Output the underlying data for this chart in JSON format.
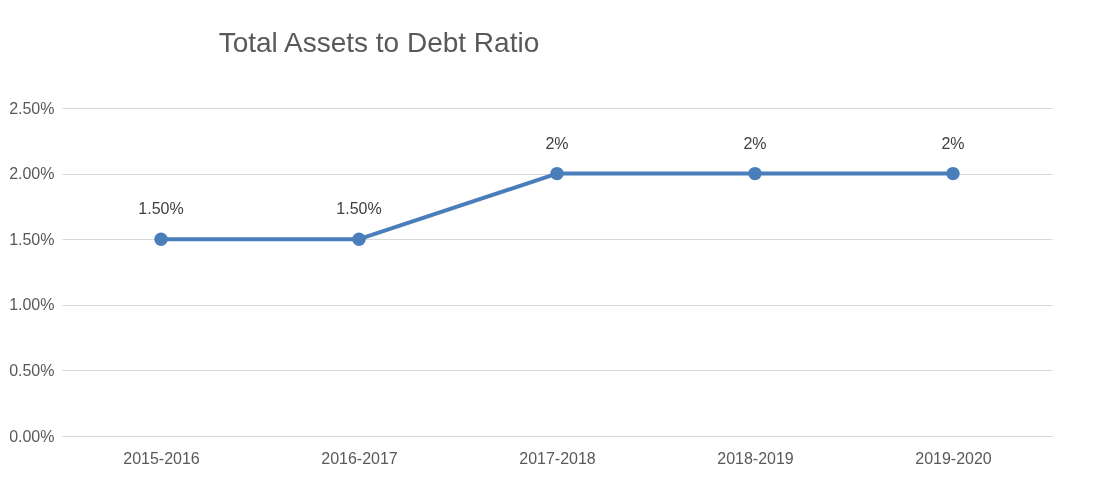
{
  "chart_data": {
    "type": "line",
    "title": "Total Assets to Debt Ratio",
    "categories": [
      "2015-2016",
      "2016-2017",
      "2017-2018",
      "2018-2019",
      "2019-2020"
    ],
    "series": [
      {
        "color": "#4a7ebb",
        "values": [
          1.5,
          1.5,
          2,
          2,
          2
        ],
        "value_labels": [
          "1.50%",
          "1.50%",
          "2%",
          "2%",
          "2%"
        ]
      }
    ],
    "ylim": [
      0,
      2.5
    ],
    "yticks": [
      {
        "value": 0,
        "label": "0.00%"
      },
      {
        "value": 0.5,
        "label": "0.50%"
      },
      {
        "value": 1,
        "label": "1.00%"
      },
      {
        "value": 1.5,
        "label": "1.50%"
      },
      {
        "value": 2,
        "label": "2.00%"
      },
      {
        "value": 2.5,
        "label": "2.50%"
      }
    ],
    "grid": "y",
    "marker": "circle",
    "line_style": "solid"
  }
}
